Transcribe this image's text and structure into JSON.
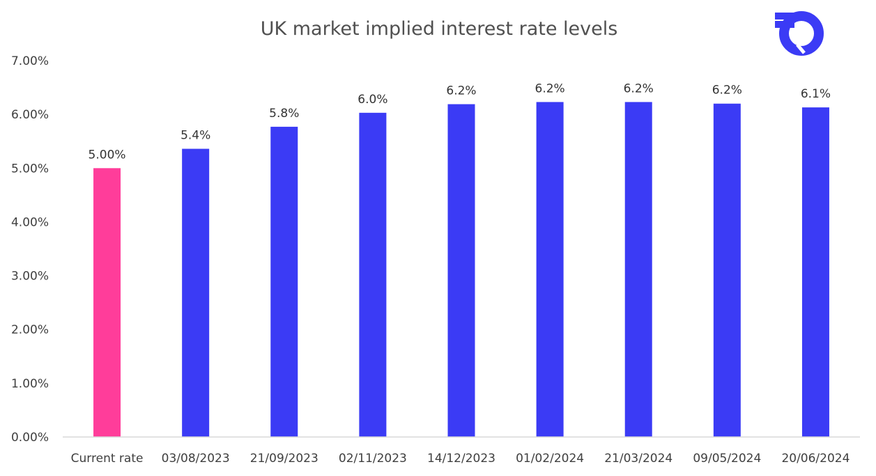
{
  "chart_data": {
    "type": "bar",
    "title": "UK market implied interest rate levels",
    "xlabel": "",
    "ylabel": "",
    "categories": [
      "Current rate",
      "03/08/2023",
      "21/09/2023",
      "02/11/2023",
      "14/12/2023",
      "01/02/2024",
      "21/03/2024",
      "09/05/2024",
      "20/06/2024"
    ],
    "values": [
      5.0,
      5.36,
      5.77,
      6.03,
      6.19,
      6.23,
      6.23,
      6.2,
      6.13
    ],
    "data_labels": [
      "5.00%",
      "5.4%",
      "5.8%",
      "6.0%",
      "6.2%",
      "6.2%",
      "6.2%",
      "6.2%",
      "6.1%"
    ],
    "ylim": [
      0,
      7
    ],
    "yticks": [
      0,
      1,
      2,
      3,
      4,
      5,
      6,
      7
    ],
    "ytick_labels": [
      "0.00%",
      "1.00%",
      "2.00%",
      "3.00%",
      "4.00%",
      "5.00%",
      "6.00%",
      "7.00%"
    ],
    "grid": false,
    "legend": "none",
    "colors": {
      "highlight": "#ff3d9a",
      "bars": "#3b3bf5",
      "axis": "#d9d9d9",
      "logo": "#3b3bf5"
    }
  },
  "logo": {
    "icon": "brand-logo-icon"
  }
}
